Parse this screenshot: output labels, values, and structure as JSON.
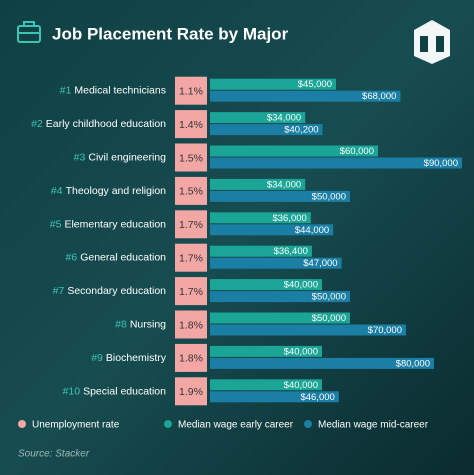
{
  "chart_data": {
    "type": "bar",
    "orientation": "horizontal",
    "title": "Job Placement Rate by Major",
    "source": "Source: Stacker",
    "ranks": [
      "#1",
      "#2",
      "#3",
      "#4",
      "#5",
      "#6",
      "#7",
      "#8",
      "#9",
      "#10"
    ],
    "categories": [
      "Medical technicians",
      "Early childhood education",
      "Civil engineering",
      "Theology and religion",
      "Elementary education",
      "General education",
      "Secondary education",
      "Nursing",
      "Biochemistry",
      "Special education"
    ],
    "xlim": [
      0,
      90000
    ],
    "series": [
      {
        "name": "Unemployment rate",
        "color": "#f3a7a5",
        "style": "box",
        "values": [
          1.1,
          1.4,
          1.5,
          1.5,
          1.7,
          1.7,
          1.7,
          1.8,
          1.8,
          1.9
        ],
        "value_labels": [
          "1.1%",
          "1.4%",
          "1.5%",
          "1.5%",
          "1.7%",
          "1.7%",
          "1.7%",
          "1.8%",
          "1.8%",
          "1.9%"
        ]
      },
      {
        "name": "Median wage early career",
        "color": "#1ba596",
        "values": [
          45000,
          34000,
          60000,
          34000,
          36000,
          36400,
          40000,
          50000,
          40000,
          40000
        ],
        "value_labels": [
          "$45,000",
          "$34,000",
          "$60,000",
          "$34,000",
          "$36,000",
          "$36,400",
          "$40,000",
          "$50,000",
          "$40,000",
          "$40,000"
        ]
      },
      {
        "name": "Median wage mid-career",
        "color": "#1b7ea4",
        "values": [
          68000,
          40200,
          90000,
          50000,
          44000,
          47000,
          50000,
          70000,
          80000,
          46000
        ],
        "value_labels": [
          "$68,000",
          "$40,200",
          "$90,000",
          "$50,000",
          "$44,000",
          "$47,000",
          "$50,000",
          "$70,000",
          "$80,000",
          "$46,000"
        ]
      }
    ]
  }
}
